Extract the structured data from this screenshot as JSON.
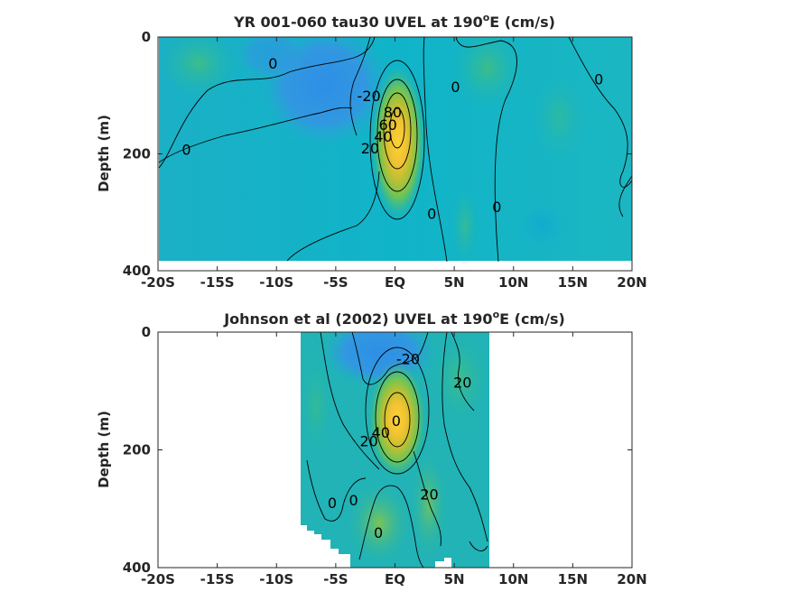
{
  "chart_data": [
    {
      "type": "heatmap",
      "title": "YR 001-060 tau30 UVEL at 190",
      "title_sup": "o",
      "title_tail": "E (cm/s)",
      "ylabel": "Depth (m)",
      "xlabel": "",
      "x_ticks": [
        "-20S",
        "-15S",
        "-10S",
        "-5S",
        "EQ",
        "5N",
        "10N",
        "15N",
        "20N"
      ],
      "y_ticks": [
        "0",
        "200",
        "400"
      ],
      "xlim": [
        -20,
        20
      ],
      "ylim": [
        0,
        400
      ],
      "y_reversed": true,
      "data_extent": {
        "lat": [
          -20,
          20
        ],
        "depth": [
          0,
          380
        ]
      },
      "core": {
        "lat": 0,
        "depth": 150,
        "max_speed": 90
      },
      "contour_labels": [
        {
          "text": "0",
          "lat": -10.3,
          "depth": 45
        },
        {
          "text": "0",
          "lat": -17.6,
          "depth": 192
        },
        {
          "text": "-20",
          "lat": -2.2,
          "depth": 100
        },
        {
          "text": "0",
          "lat": 5.1,
          "depth": 85
        },
        {
          "text": "0",
          "lat": 17.2,
          "depth": 72
        },
        {
          "text": "20",
          "lat": -2.1,
          "depth": 190
        },
        {
          "text": "40",
          "lat": -1.0,
          "depth": 170
        },
        {
          "text": "60",
          "lat": -0.6,
          "depth": 150
        },
        {
          "text": "80",
          "lat": -0.2,
          "depth": 128
        },
        {
          "text": "0",
          "lat": 3.1,
          "depth": 302
        },
        {
          "text": "0",
          "lat": 8.6,
          "depth": 290
        }
      ]
    },
    {
      "type": "heatmap",
      "title": "Johnson et al (2002) UVEL at 190",
      "title_sup": "o",
      "title_tail": "E (cm/s)",
      "ylabel": "Depth (m)",
      "xlabel": "",
      "x_ticks": [
        "-20S",
        "-15S",
        "-10S",
        "-5S",
        "EQ",
        "5N",
        "10N",
        "15N",
        "20N"
      ],
      "y_ticks": [
        "0",
        "200",
        "400"
      ],
      "xlim": [
        -20,
        20
      ],
      "ylim": [
        0,
        400
      ],
      "y_reversed": true,
      "data_extent": {
        "lat": [
          -8,
          8
        ],
        "depth": [
          0,
          400
        ]
      },
      "core": {
        "lat": 0,
        "depth": 155,
        "max_speed": 80
      },
      "contour_labels": [
        {
          "text": "-20",
          "lat": 1.1,
          "depth": 45
        },
        {
          "text": "20",
          "lat": 5.7,
          "depth": 85
        },
        {
          "text": "20",
          "lat": -2.2,
          "depth": 185
        },
        {
          "text": "40",
          "lat": -1.2,
          "depth": 170
        },
        {
          "text": "0",
          "lat": 0.1,
          "depth": 150
        },
        {
          "text": "0",
          "lat": -5.3,
          "depth": 290
        },
        {
          "text": "0",
          "lat": -3.5,
          "depth": 285
        },
        {
          "text": "20",
          "lat": 2.9,
          "depth": 275
        },
        {
          "text": "0",
          "lat": -1.4,
          "depth": 340
        }
      ]
    }
  ]
}
